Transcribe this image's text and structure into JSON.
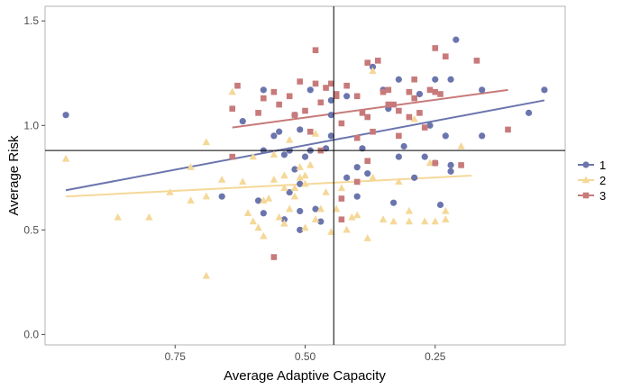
{
  "chart_data": {
    "type": "scatter",
    "title": "",
    "xlabel": "Average Adaptive Capacity",
    "ylabel": "Average Risk",
    "x_reversed": true,
    "xlim": [
      1.0,
      0.0
    ],
    "ylim": [
      -0.05,
      1.57
    ],
    "xticks": [
      0.75,
      0.5,
      0.25
    ],
    "xtick_labels": [
      "0.75",
      "0.50",
      "0.25"
    ],
    "yticks": [
      0.0,
      0.5,
      1.0,
      1.5
    ],
    "ytick_labels": [
      "0.0",
      "0.5",
      "1.0",
      "1.5"
    ],
    "reference_lines": {
      "x": 0.445,
      "y": 0.88
    },
    "grid": false,
    "legend_position": "right",
    "series": [
      {
        "name": "1",
        "color": "#6b75ad",
        "marker": "circle",
        "trend": [
          [
            0.96,
            0.69
          ],
          [
            0.04,
            1.12
          ]
        ],
        "points": [
          [
            0.96,
            1.05
          ],
          [
            0.66,
            0.66
          ],
          [
            0.62,
            1.02
          ],
          [
            0.59,
            0.64
          ],
          [
            0.58,
            0.88
          ],
          [
            0.58,
            0.58
          ],
          [
            0.58,
            1.17
          ],
          [
            0.56,
            0.95
          ],
          [
            0.55,
            0.97
          ],
          [
            0.54,
            0.86
          ],
          [
            0.54,
            0.55
          ],
          [
            0.53,
            0.68
          ],
          [
            0.53,
            0.88
          ],
          [
            0.52,
            0.79
          ],
          [
            0.52,
            1.05
          ],
          [
            0.51,
            0.98
          ],
          [
            0.51,
            0.59
          ],
          [
            0.51,
            0.72
          ],
          [
            0.51,
            0.5
          ],
          [
            0.5,
            0.85
          ],
          [
            0.49,
            0.88
          ],
          [
            0.49,
            1.17
          ],
          [
            0.48,
            0.6
          ],
          [
            0.47,
            0.54
          ],
          [
            0.46,
            0.89
          ],
          [
            0.45,
            1.05
          ],
          [
            0.45,
            0.95
          ],
          [
            0.45,
            1.12
          ],
          [
            0.42,
            1.14
          ],
          [
            0.42,
            0.75
          ],
          [
            0.4,
            0.66
          ],
          [
            0.4,
            0.8
          ],
          [
            0.39,
            0.89
          ],
          [
            0.38,
            0.77
          ],
          [
            0.37,
            1.28
          ],
          [
            0.35,
            1.17
          ],
          [
            0.34,
            1.08
          ],
          [
            0.33,
            0.63
          ],
          [
            0.32,
            0.85
          ],
          [
            0.32,
            1.22
          ],
          [
            0.31,
            0.9
          ],
          [
            0.29,
            0.75
          ],
          [
            0.28,
            1.15
          ],
          [
            0.27,
            0.85
          ],
          [
            0.26,
            1.0
          ],
          [
            0.25,
            1.22
          ],
          [
            0.25,
            0.82
          ],
          [
            0.24,
            0.62
          ],
          [
            0.23,
            0.95
          ],
          [
            0.22,
            0.81
          ],
          [
            0.22,
            1.22
          ],
          [
            0.22,
            0.78
          ],
          [
            0.21,
            1.41
          ],
          [
            0.16,
            0.95
          ],
          [
            0.16,
            1.17
          ],
          [
            0.07,
            1.06
          ],
          [
            0.04,
            1.17
          ]
        ]
      },
      {
        "name": "2",
        "color": "#f5d898",
        "marker": "triangle",
        "trend": [
          [
            0.96,
            0.66
          ],
          [
            0.18,
            0.76
          ]
        ],
        "points": [
          [
            0.96,
            0.84
          ],
          [
            0.86,
            0.56
          ],
          [
            0.8,
            0.56
          ],
          [
            0.76,
            0.68
          ],
          [
            0.72,
            0.64
          ],
          [
            0.72,
            0.8
          ],
          [
            0.69,
            0.92
          ],
          [
            0.69,
            0.66
          ],
          [
            0.69,
            0.28
          ],
          [
            0.66,
            0.74
          ],
          [
            0.64,
            1.16
          ],
          [
            0.62,
            0.73
          ],
          [
            0.61,
            0.58
          ],
          [
            0.6,
            0.85
          ],
          [
            0.6,
            0.54
          ],
          [
            0.59,
            0.51
          ],
          [
            0.58,
            0.64
          ],
          [
            0.58,
            0.47
          ],
          [
            0.57,
            0.65
          ],
          [
            0.56,
            0.74
          ],
          [
            0.56,
            0.86
          ],
          [
            0.55,
            0.56
          ],
          [
            0.54,
            0.76
          ],
          [
            0.54,
            0.7
          ],
          [
            0.54,
            0.53
          ],
          [
            0.53,
            0.93
          ],
          [
            0.53,
            0.6
          ],
          [
            0.52,
            0.7
          ],
          [
            0.52,
            0.66
          ],
          [
            0.51,
            0.8
          ],
          [
            0.51,
            0.75
          ],
          [
            0.5,
            0.76
          ],
          [
            0.5,
            0.72
          ],
          [
            0.5,
            0.51
          ],
          [
            0.49,
            0.81
          ],
          [
            0.48,
            0.96
          ],
          [
            0.48,
            0.55
          ],
          [
            0.47,
            0.6
          ],
          [
            0.46,
            0.68
          ],
          [
            0.45,
            0.49
          ],
          [
            0.44,
            0.6
          ],
          [
            0.43,
            0.7
          ],
          [
            0.42,
            0.5
          ],
          [
            0.41,
            0.56
          ],
          [
            0.4,
            0.57
          ],
          [
            0.38,
            0.46
          ],
          [
            0.37,
            1.26
          ],
          [
            0.37,
            0.75
          ],
          [
            0.35,
            0.55
          ],
          [
            0.33,
            0.54
          ],
          [
            0.32,
            0.73
          ],
          [
            0.3,
            0.54
          ],
          [
            0.3,
            0.59
          ],
          [
            0.29,
            1.03
          ],
          [
            0.27,
            0.54
          ],
          [
            0.26,
            0.82
          ],
          [
            0.25,
            0.54
          ],
          [
            0.23,
            0.59
          ],
          [
            0.23,
            0.55
          ],
          [
            0.2,
            0.9
          ]
        ]
      },
      {
        "name": "3",
        "color": "#c87a7a",
        "marker": "square",
        "trend": [
          [
            0.64,
            0.99
          ],
          [
            0.11,
            1.17
          ]
        ],
        "points": [
          [
            0.64,
            0.85
          ],
          [
            0.64,
            1.08
          ],
          [
            0.63,
            1.19
          ],
          [
            0.59,
            1.06
          ],
          [
            0.58,
            1.13
          ],
          [
            0.56,
            0.37
          ],
          [
            0.56,
            1.16
          ],
          [
            0.55,
            1.1
          ],
          [
            0.53,
            1.14
          ],
          [
            0.52,
            1.05
          ],
          [
            0.51,
            1.21
          ],
          [
            0.5,
            1.07
          ],
          [
            0.49,
            0.97
          ],
          [
            0.48,
            1.36
          ],
          [
            0.48,
            1.2
          ],
          [
            0.47,
            0.88
          ],
          [
            0.47,
            1.11
          ],
          [
            0.46,
            1.18
          ],
          [
            0.45,
            1.2
          ],
          [
            0.44,
            1.14
          ],
          [
            0.44,
            1.15
          ],
          [
            0.43,
            0.65
          ],
          [
            0.43,
            1.01
          ],
          [
            0.43,
            0.55
          ],
          [
            0.42,
            1.19
          ],
          [
            0.4,
            1.14
          ],
          [
            0.4,
            0.94
          ],
          [
            0.4,
            0.73
          ],
          [
            0.39,
            1.06
          ],
          [
            0.38,
            0.83
          ],
          [
            0.38,
            1.3
          ],
          [
            0.38,
            1.04
          ],
          [
            0.37,
            0.97
          ],
          [
            0.36,
            1.31
          ],
          [
            0.35,
            1.16
          ],
          [
            0.34,
            1.17
          ],
          [
            0.34,
            1.1
          ],
          [
            0.33,
            1.1
          ],
          [
            0.32,
            1.07
          ],
          [
            0.32,
            0.95
          ],
          [
            0.3,
            1.16
          ],
          [
            0.3,
            1.04
          ],
          [
            0.29,
            1.22
          ],
          [
            0.29,
            1.13
          ],
          [
            0.28,
            1.06
          ],
          [
            0.27,
            0.99
          ],
          [
            0.26,
            1.17
          ],
          [
            0.25,
            1.16
          ],
          [
            0.25,
            1.37
          ],
          [
            0.25,
            0.82
          ],
          [
            0.24,
            1.15
          ],
          [
            0.23,
            1.33
          ],
          [
            0.2,
            0.81
          ],
          [
            0.17,
            1.31
          ],
          [
            0.11,
            0.98
          ]
        ]
      }
    ]
  }
}
